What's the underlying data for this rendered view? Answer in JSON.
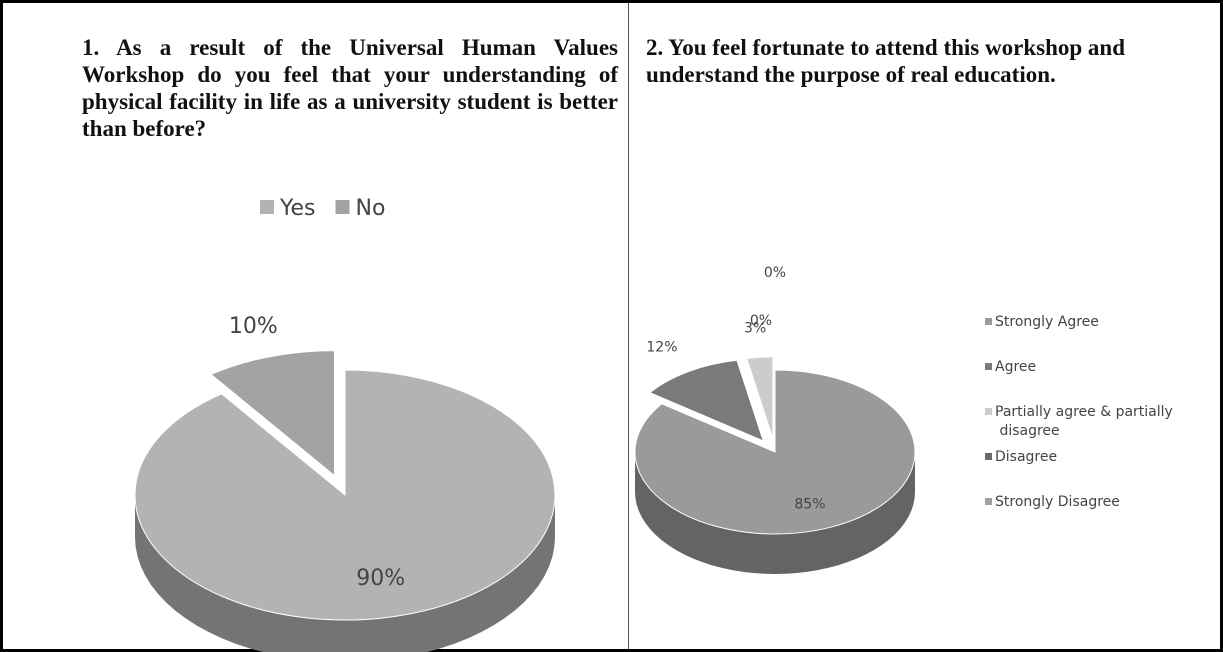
{
  "chart_data": [
    {
      "type": "pie",
      "title": "1. As a result of the Universal Human Values Workshop do you feel that your understanding of physical facility in life as a university student is better than before?",
      "categories": [
        "Yes",
        "No"
      ],
      "values": [
        90,
        10
      ],
      "value_labels": [
        "90%",
        "10%"
      ],
      "colors": [
        "#b3b3b3",
        "#a3a3a3"
      ],
      "legend": "top"
    },
    {
      "type": "pie",
      "title": "2. You feel fortunate to attend this workshop and understand the purpose of real education.",
      "categories": [
        "Strongly Agree",
        "Agree",
        "Partially agree & partially disagree",
        "Disagree",
        "Strongly Disagree"
      ],
      "values": [
        85,
        12,
        3,
        0,
        0
      ],
      "value_labels": [
        "85%",
        "12%",
        "3%",
        "0%",
        "0%"
      ],
      "colors": [
        "#9a9a9a",
        "#7a7a7a",
        "#cccccc",
        "#6a6a6a",
        "#a0a0a0"
      ],
      "legend": "right"
    }
  ]
}
